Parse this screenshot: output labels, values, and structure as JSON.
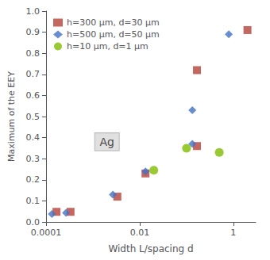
{
  "chart_data": {
    "type": "scatter",
    "xlabel": "Width L/spacing d",
    "ylabel": "Maximum of the EEY",
    "log": "x",
    "xlim": [
      0.0001,
      3.0
    ],
    "xticks": [
      0.0001,
      0.01,
      1
    ],
    "ylim": [
      0,
      1.0
    ],
    "yticks": [
      {
        "value": 0,
        "label": "0.0"
      },
      0.1,
      0.2,
      0.3,
      0.4,
      0.5,
      0.6,
      0.7,
      0.8,
      0.9,
      {
        "value": 1,
        "label": "1.0"
      }
    ],
    "grid": false,
    "legend": "upper left",
    "series": [
      {
        "name": "h=300 μm, d=30 μm",
        "color": "#b5413a",
        "marker": "square",
        "x": [
          0.000167,
          0.000333,
          0.00333,
          0.0133,
          0.167,
          2.0,
          0.167
        ],
        "values": [
          0.048,
          0.048,
          0.12,
          0.23,
          0.72,
          0.91,
          0.36
        ]
      },
      {
        "name": "h=500 μm, d=50 μm",
        "color": "#4472c4",
        "marker": "diamond",
        "x": [
          0.000133,
          0.000267,
          0.00267,
          0.0133,
          0.133,
          0.8,
          0.133
        ],
        "values": [
          0.038,
          0.043,
          0.13,
          0.24,
          0.53,
          0.89,
          0.37
        ]
      },
      {
        "name": "h=10 μm, d=1 μm",
        "color": "#7fbc00",
        "marker": "circle",
        "x": [
          0.02,
          0.1,
          0.5
        ],
        "values": [
          0.245,
          0.35,
          0.33
        ]
      }
    ],
    "annotations": [
      {
        "text": "Ag",
        "x": 0.002,
        "y": 0.38,
        "color": "#d8d8d8"
      }
    ]
  }
}
